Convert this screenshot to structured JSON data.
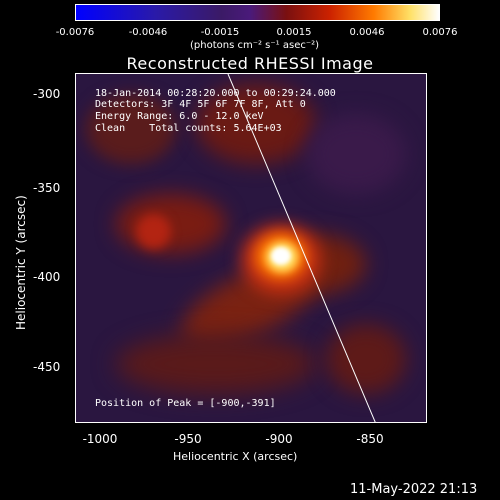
{
  "colorbar": {
    "ticks": [
      "-0.0076",
      "-0.0046",
      "-0.0015",
      "0.0015",
      "0.0046",
      "0.0076"
    ],
    "units": "(photons cm⁻² s⁻¹ asec⁻²)"
  },
  "title": "Reconstructed RHESSI Image",
  "annotations": {
    "time_range": "18-Jan-2014 00:28:20.000 to 00:29:24.000",
    "detectors": "Detectors: 3F 4F 5F 6F 7F 8F, Att 0",
    "energy": "Energy Range: 6.0 - 12.0 keV",
    "clean": "Clean    Total counts: 5.64E+03",
    "peak": "Position of Peak = [-900,-391]"
  },
  "axes": {
    "xlabel": "Heliocentric X (arcsec)",
    "ylabel": "Heliocentric Y (arcsec)",
    "xticks": [
      "-1000",
      "-950",
      "-900",
      "-850"
    ],
    "yticks": [
      "-300",
      "-350",
      "-400",
      "-450"
    ]
  },
  "footer": {
    "timestamp": "11-May-2022 21:13"
  }
}
